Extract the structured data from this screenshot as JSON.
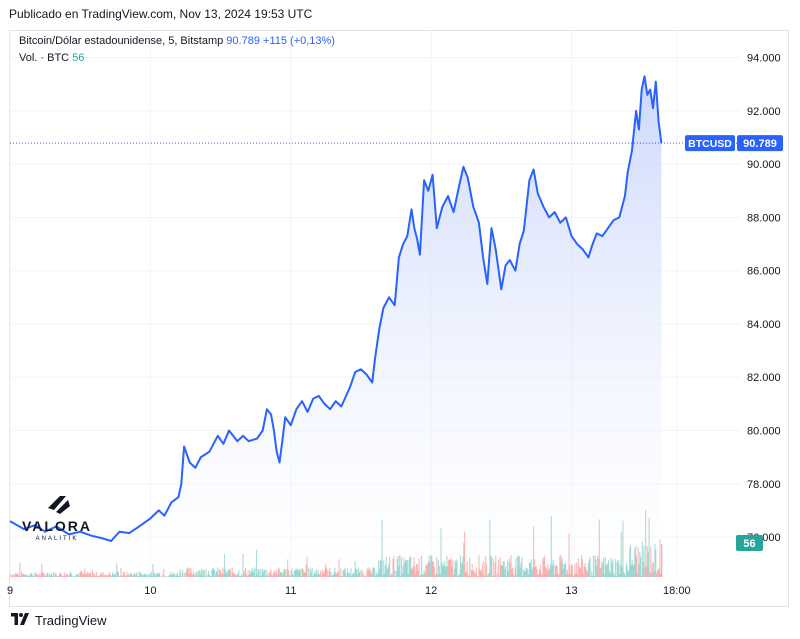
{
  "header": {
    "published": "Publicado en TradingView.com, Nov 13, 2024 19:53 UTC"
  },
  "legend": {
    "symbol": "Bitcoin/Dólar estadounidense, 5, Bitstamp",
    "price": "90.789",
    "change": "+115 (+0,13%)",
    "vol_label": "Vol. · BTC",
    "vol_value": "56"
  },
  "labels": {
    "price_tag_symbol": "BTCUSD",
    "price_tag_value": "90.789",
    "vol_tag_value": "56"
  },
  "watermark": {
    "line1": "VALORA",
    "line2": "ANALITIK"
  },
  "footer": {
    "brand": "TradingView"
  },
  "colors": {
    "line": "#2962ff",
    "area_top": "#c7d4fb",
    "up_volume": "#26a69a",
    "down_volume": "#ef5350",
    "grid": "#f0f3fa"
  },
  "chart_data": {
    "type": "area",
    "title": "Bitcoin/Dólar estadounidense, 5, Bitstamp",
    "ylim": [
      74500,
      95000
    ],
    "yticks": [
      76000,
      78000,
      80000,
      82000,
      84000,
      86000,
      88000,
      90000,
      92000,
      94000
    ],
    "ytick_labels": [
      "76.000",
      "78.000",
      "80.000",
      "82.000",
      "84.000",
      "86.000",
      "88.000",
      "90.000",
      "92.000",
      "94.000"
    ],
    "xticks": [
      {
        "t": 0.0,
        "label": "9"
      },
      {
        "t": 1.0,
        "label": "10"
      },
      {
        "t": 2.0,
        "label": "11"
      },
      {
        "t": 3.0,
        "label": "12"
      },
      {
        "t": 4.0,
        "label": "13"
      },
      {
        "t": 4.75,
        "label": "18:00"
      }
    ],
    "xlim": [
      0.0,
      5.2
    ],
    "last_price": 90789,
    "grid": true,
    "series": [
      {
        "name": "BTCUSD",
        "points": [
          [
            0.0,
            76600
          ],
          [
            0.1,
            76300
          ],
          [
            0.18,
            76450
          ],
          [
            0.25,
            76200
          ],
          [
            0.33,
            76400
          ],
          [
            0.42,
            76100
          ],
          [
            0.5,
            76200
          ],
          [
            0.58,
            76050
          ],
          [
            0.66,
            75950
          ],
          [
            0.72,
            75850
          ],
          [
            0.78,
            76200
          ],
          [
            0.85,
            76150
          ],
          [
            0.92,
            76400
          ],
          [
            1.0,
            76700
          ],
          [
            1.06,
            77000
          ],
          [
            1.1,
            76800
          ],
          [
            1.15,
            77300
          ],
          [
            1.2,
            77500
          ],
          [
            1.22,
            78000
          ],
          [
            1.24,
            79400
          ],
          [
            1.28,
            78800
          ],
          [
            1.32,
            78600
          ],
          [
            1.36,
            79000
          ],
          [
            1.42,
            79200
          ],
          [
            1.48,
            79800
          ],
          [
            1.52,
            79500
          ],
          [
            1.56,
            80000
          ],
          [
            1.62,
            79600
          ],
          [
            1.66,
            79800
          ],
          [
            1.7,
            79600
          ],
          [
            1.76,
            79700
          ],
          [
            1.8,
            80000
          ],
          [
            1.83,
            80800
          ],
          [
            1.86,
            80600
          ],
          [
            1.88,
            80000
          ],
          [
            1.9,
            79200
          ],
          [
            1.92,
            78800
          ],
          [
            1.94,
            79600
          ],
          [
            1.96,
            80500
          ],
          [
            2.0,
            80200
          ],
          [
            2.04,
            80800
          ],
          [
            2.08,
            81100
          ],
          [
            2.12,
            80700
          ],
          [
            2.16,
            81200
          ],
          [
            2.2,
            81300
          ],
          [
            2.24,
            81000
          ],
          [
            2.28,
            80800
          ],
          [
            2.32,
            81100
          ],
          [
            2.36,
            80900
          ],
          [
            2.42,
            81600
          ],
          [
            2.46,
            82200
          ],
          [
            2.5,
            82300
          ],
          [
            2.54,
            82100
          ],
          [
            2.58,
            81800
          ],
          [
            2.6,
            82700
          ],
          [
            2.63,
            83800
          ],
          [
            2.66,
            84600
          ],
          [
            2.7,
            85000
          ],
          [
            2.74,
            84700
          ],
          [
            2.77,
            86500
          ],
          [
            2.8,
            87000
          ],
          [
            2.83,
            87300
          ],
          [
            2.86,
            88300
          ],
          [
            2.88,
            87600
          ],
          [
            2.9,
            87200
          ],
          [
            2.92,
            86600
          ],
          [
            2.95,
            89400
          ],
          [
            2.98,
            89000
          ],
          [
            3.01,
            89600
          ],
          [
            3.04,
            87600
          ],
          [
            3.08,
            88400
          ],
          [
            3.12,
            88800
          ],
          [
            3.16,
            88200
          ],
          [
            3.2,
            89200
          ],
          [
            3.23,
            89900
          ],
          [
            3.26,
            89500
          ],
          [
            3.3,
            88400
          ],
          [
            3.34,
            87800
          ],
          [
            3.37,
            86500
          ],
          [
            3.4,
            85500
          ],
          [
            3.43,
            87600
          ],
          [
            3.46,
            86800
          ],
          [
            3.5,
            85300
          ],
          [
            3.53,
            86200
          ],
          [
            3.56,
            86400
          ],
          [
            3.6,
            86000
          ],
          [
            3.63,
            87000
          ],
          [
            3.66,
            87500
          ],
          [
            3.7,
            89400
          ],
          [
            3.73,
            89800
          ],
          [
            3.76,
            88900
          ],
          [
            3.8,
            88400
          ],
          [
            3.84,
            88000
          ],
          [
            3.88,
            88200
          ],
          [
            3.92,
            87800
          ],
          [
            3.96,
            88000
          ],
          [
            4.0,
            87300
          ],
          [
            4.04,
            87000
          ],
          [
            4.08,
            86800
          ],
          [
            4.12,
            86500
          ],
          [
            4.15,
            87000
          ],
          [
            4.18,
            87400
          ],
          [
            4.22,
            87300
          ],
          [
            4.26,
            87600
          ],
          [
            4.3,
            87900
          ],
          [
            4.34,
            88000
          ],
          [
            4.38,
            88800
          ],
          [
            4.4,
            89700
          ],
          [
            4.43,
            90500
          ],
          [
            4.46,
            92000
          ],
          [
            4.48,
            91300
          ],
          [
            4.5,
            92800
          ],
          [
            4.52,
            93300
          ],
          [
            4.54,
            92600
          ],
          [
            4.56,
            92800
          ],
          [
            4.58,
            92100
          ],
          [
            4.6,
            93100
          ],
          [
            4.62,
            91600
          ],
          [
            4.64,
            90789
          ]
        ]
      }
    ]
  }
}
